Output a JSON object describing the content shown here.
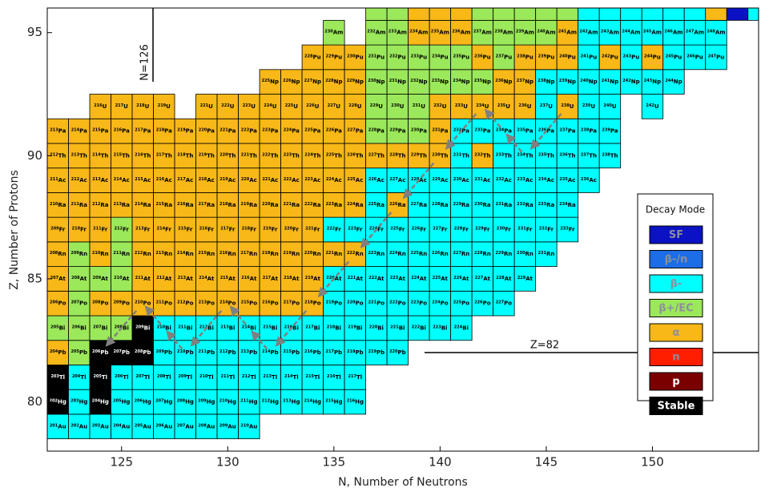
{
  "chart_data": {
    "type": "nuclide-chart",
    "xlabel": "N, Number of Neutrons",
    "ylabel": "Z, Number of Protons",
    "xlim": [
      121.5,
      155
    ],
    "ylim": [
      78,
      96
    ],
    "xticks": [
      125,
      130,
      135,
      140,
      145,
      150
    ],
    "yticks": [
      80,
      85,
      90,
      95
    ],
    "annotations": [
      "N=126",
      "Z=82"
    ],
    "legend": {
      "title": "Decay Mode",
      "position": "right",
      "entries": [
        {
          "name": "SF",
          "color": "#0a12c4"
        },
        {
          "name": "β-/n",
          "color": "#1c6de6"
        },
        {
          "name": "β-",
          "color": "#00ffff"
        },
        {
          "name": "β+/EC",
          "color": "#9be85a"
        },
        {
          "name": "α",
          "color": "#f8b817"
        },
        {
          "name": "n",
          "color": "#ff1e00"
        },
        {
          "name": "p",
          "color": "#7a0000"
        },
        {
          "name": "Stable",
          "color": "#000000"
        }
      ]
    },
    "rows": [
      {
        "z": 79,
        "symbol": "Au",
        "masses": [
          201,
          202,
          203,
          204,
          205,
          206,
          207,
          208,
          209,
          210
        ],
        "modes": [
          "β-",
          "β-",
          "β-",
          "β-",
          "β-",
          "β-",
          "β-",
          "β-",
          "β-",
          "β-"
        ]
      },
      {
        "z": 80,
        "symbol": "Hg",
        "masses": [
          202,
          203,
          204,
          205,
          206,
          207,
          208,
          209,
          210,
          211,
          212,
          213,
          214,
          215,
          216
        ],
        "modes": [
          "Stable",
          "β-",
          "Stable",
          "β-",
          "β-",
          "β-",
          "β-",
          "β-",
          "β-",
          "β-",
          "β-",
          "β-",
          "β-",
          "β-",
          "β-"
        ]
      },
      {
        "z": 81,
        "symbol": "Tl",
        "masses": [
          203,
          204,
          205,
          206,
          207,
          208,
          209,
          210,
          211,
          212,
          213,
          214,
          215,
          216,
          217
        ],
        "modes": [
          "Stable",
          "β-",
          "Stable",
          "β-",
          "β-",
          "β-",
          "β-",
          "β-",
          "β-",
          "β-",
          "β-",
          "β-",
          "β-",
          "β-",
          "β-"
        ]
      },
      {
        "z": 82,
        "symbol": "Pb",
        "masses": [
          204,
          205,
          206,
          207,
          208,
          209,
          210,
          211,
          212,
          213,
          214,
          215,
          216,
          217,
          218,
          219,
          220
        ],
        "modes": [
          "α",
          "β+/EC",
          "Stable",
          "Stable",
          "Stable",
          "β-",
          "β-",
          "β-",
          "β-",
          "β-",
          "β-",
          "β-",
          "β-",
          "β-",
          "β-",
          "β-",
          "β-"
        ]
      },
      {
        "z": 83,
        "symbol": "Bi",
        "masses": [
          205,
          206,
          207,
          208,
          209,
          210,
          211,
          212,
          213,
          214,
          215,
          216,
          217,
          218,
          219,
          220,
          221,
          222,
          223,
          224
        ],
        "modes": [
          "β+/EC",
          "β+/EC",
          "β+/EC",
          "β+/EC",
          "Stable",
          "β-",
          "β-",
          "β-",
          "β-",
          "β-",
          "β-",
          "β-",
          "β-",
          "β-",
          "β-",
          "β-",
          "β-",
          "β-",
          "β-",
          "β-"
        ]
      },
      {
        "z": 84,
        "symbol": "Po",
        "masses": [
          206,
          207,
          208,
          209,
          210,
          211,
          212,
          213,
          214,
          215,
          216,
          217,
          218,
          219,
          220,
          221,
          222,
          223,
          224,
          225,
          226,
          227
        ],
        "modes": [
          "α",
          "β+/EC",
          "α",
          "α",
          "α",
          "α",
          "α",
          "α",
          "α",
          "α",
          "α",
          "α",
          "α",
          "β-",
          "β-",
          "β-",
          "β-",
          "β-",
          "β-",
          "β-",
          "β-",
          "β-"
        ]
      },
      {
        "z": 85,
        "symbol": "At",
        "masses": [
          207,
          208,
          209,
          210,
          211,
          212,
          213,
          214,
          215,
          216,
          217,
          218,
          219,
          220,
          221,
          222,
          223,
          224,
          225,
          226,
          227,
          228,
          229
        ],
        "modes": [
          "α",
          "β+/EC",
          "β+/EC",
          "β+/EC",
          "α",
          "α",
          "α",
          "α",
          "α",
          "α",
          "α",
          "α",
          "α",
          "β-",
          "β-",
          "β-",
          "β-",
          "β-",
          "β-",
          "β-",
          "β-",
          "β-",
          "β-"
        ]
      },
      {
        "z": 86,
        "symbol": "Rn",
        "masses": [
          208,
          209,
          210,
          211,
          212,
          213,
          214,
          215,
          216,
          217,
          218,
          219,
          220,
          221,
          222,
          223,
          224,
          225,
          226,
          227,
          228,
          229,
          230,
          231
        ],
        "modes": [
          "α",
          "β+/EC",
          "α",
          "β+/EC",
          "α",
          "α",
          "α",
          "α",
          "α",
          "α",
          "α",
          "α",
          "α",
          "α",
          "α",
          "β-",
          "β-",
          "β-",
          "β-",
          "β-",
          "β-",
          "β-",
          "β-",
          "β-"
        ]
      },
      {
        "z": 87,
        "symbol": "Fr",
        "masses": [
          209,
          210,
          211,
          212,
          213,
          214,
          215,
          216,
          217,
          218,
          219,
          220,
          221,
          222,
          223,
          224,
          225,
          226,
          227,
          228,
          229,
          230,
          231,
          232,
          233
        ],
        "modes": [
          "α",
          "α",
          "α",
          "β+/EC",
          "α",
          "α",
          "α",
          "α",
          "α",
          "α",
          "α",
          "α",
          "α",
          "β-",
          "β-",
          "β-",
          "β-",
          "β-",
          "β-",
          "β-",
          "β-",
          "β-",
          "β-",
          "β-",
          "β-"
        ]
      },
      {
        "z": 88,
        "symbol": "Ra",
        "masses": [
          210,
          211,
          212,
          213,
          214,
          215,
          216,
          217,
          218,
          219,
          220,
          221,
          222,
          223,
          224,
          225,
          226,
          227,
          228,
          229,
          230,
          231,
          232,
          233,
          234
        ],
        "modes": [
          "α",
          "α",
          "α",
          "α",
          "α",
          "α",
          "α",
          "α",
          "α",
          "α",
          "α",
          "α",
          "α",
          "α",
          "α",
          "β-",
          "α",
          "β-",
          "β-",
          "β-",
          "β-",
          "β-",
          "β-",
          "β-",
          "β-"
        ]
      },
      {
        "z": 89,
        "symbol": "Ac",
        "masses": [
          211,
          212,
          213,
          214,
          215,
          216,
          217,
          218,
          219,
          220,
          221,
          222,
          223,
          224,
          225,
          226,
          227,
          228,
          229,
          230,
          231,
          232,
          233,
          234,
          235,
          236
        ],
        "modes": [
          "α",
          "α",
          "α",
          "α",
          "α",
          "α",
          "α",
          "α",
          "α",
          "α",
          "α",
          "α",
          "α",
          "α",
          "α",
          "β-",
          "β-",
          "β-",
          "β-",
          "β-",
          "β-",
          "β-",
          "β-",
          "β-",
          "β-",
          "β-"
        ]
      },
      {
        "z": 90,
        "symbol": "Th",
        "masses": [
          212,
          213,
          214,
          215,
          216,
          217,
          218,
          219,
          220,
          221,
          222,
          223,
          224,
          225,
          226,
          227,
          228,
          229,
          230,
          231,
          232,
          233,
          234,
          235,
          236,
          237,
          238
        ],
        "modes": [
          "α",
          "α",
          "α",
          "α",
          "α",
          "α",
          "α",
          "α",
          "α",
          "α",
          "α",
          "α",
          "α",
          "α",
          "α",
          "α",
          "α",
          "α",
          "α",
          "β-",
          "α",
          "β-",
          "β-",
          "β-",
          "β-",
          "β-",
          "β-"
        ]
      },
      {
        "z": 91,
        "symbol": "Pa",
        "masses": [
          213,
          214,
          215,
          216,
          217,
          218,
          219,
          220,
          221,
          222,
          223,
          224,
          225,
          226,
          227,
          228,
          229,
          230,
          231,
          232,
          233,
          234,
          235,
          236,
          237,
          238,
          239
        ],
        "modes": [
          "α",
          "α",
          "α",
          "α",
          "α",
          "α",
          "α",
          "α",
          "α",
          "α",
          "α",
          "α",
          "α",
          "α",
          "α",
          "β+/EC",
          "β+/EC",
          "β+/EC",
          "α",
          "β-",
          "β-",
          "β-",
          "β-",
          "β-",
          "β-",
          "β-",
          "β-"
        ]
      },
      {
        "z": 92,
        "symbol": "U",
        "masses": [
          216,
          217,
          218,
          219,
          221,
          222,
          223,
          224,
          225,
          226,
          227,
          228,
          229,
          230,
          231,
          232,
          233,
          234,
          235,
          236,
          237,
          238,
          239,
          240,
          242
        ],
        "modes": [
          "α",
          "α",
          "α",
          "α",
          "α",
          "α",
          "α",
          "α",
          "α",
          "α",
          "α",
          "α",
          "β+/EC",
          "β+/EC",
          "β+/EC",
          "α",
          "α",
          "α",
          "α",
          "α",
          "β-",
          "α",
          "β-",
          "β-",
          "β-"
        ]
      },
      {
        "z": 93,
        "symbol": "Np",
        "masses": [
          225,
          226,
          227,
          228,
          229,
          230,
          231,
          232,
          233,
          234,
          235,
          236,
          237,
          238,
          239,
          240,
          241,
          242,
          243,
          244
        ],
        "modes": [
          "α",
          "α",
          "α",
          "α",
          "α",
          "β+/EC",
          "β+/EC",
          "β+/EC",
          "β+/EC",
          "β+/EC",
          "β+/EC",
          "α",
          "α",
          "β-",
          "β-",
          "β-",
          "β-",
          "β-",
          "β-",
          "β-"
        ]
      },
      {
        "z": 94,
        "symbol": "Pu",
        "masses": [
          228,
          229,
          230,
          231,
          232,
          233,
          234,
          235,
          236,
          237,
          238,
          239,
          240,
          241,
          242,
          243,
          244,
          245,
          246,
          247
        ],
        "modes": [
          "α",
          "α",
          "α",
          "β+/EC",
          "β+/EC",
          "β+/EC",
          "β+/EC",
          "β+/EC",
          "α",
          "β+/EC",
          "α",
          "α",
          "α",
          "β-",
          "α",
          "β-",
          "α",
          "β-",
          "β-",
          "β-"
        ]
      },
      {
        "z": 95,
        "symbol": "Am",
        "masses": [
          230,
          232,
          233,
          234,
          235,
          236,
          237,
          238,
          239,
          240,
          241,
          242,
          243,
          244,
          245,
          246,
          247,
          248
        ],
        "modes": [
          "β+/EC",
          "β+/EC",
          "β+/EC",
          "α",
          "α",
          "α",
          "β+/EC",
          "β+/EC",
          "β+/EC",
          "β+/EC",
          "α",
          "β-",
          "β-",
          "β-",
          "β-",
          "β-",
          "β-",
          "β-"
        ]
      },
      {
        "z": 96,
        "n0": 137,
        "modes": [
          "β+/EC",
          "β+/EC",
          "α",
          "α",
          "α",
          "β+/EC",
          "β+/EC",
          "β+/EC",
          "β+/EC",
          "β+/EC",
          "β-",
          "β-",
          "β-",
          "β-",
          "β-",
          "β-",
          "α",
          "SF",
          "β-"
        ]
      }
    ]
  }
}
